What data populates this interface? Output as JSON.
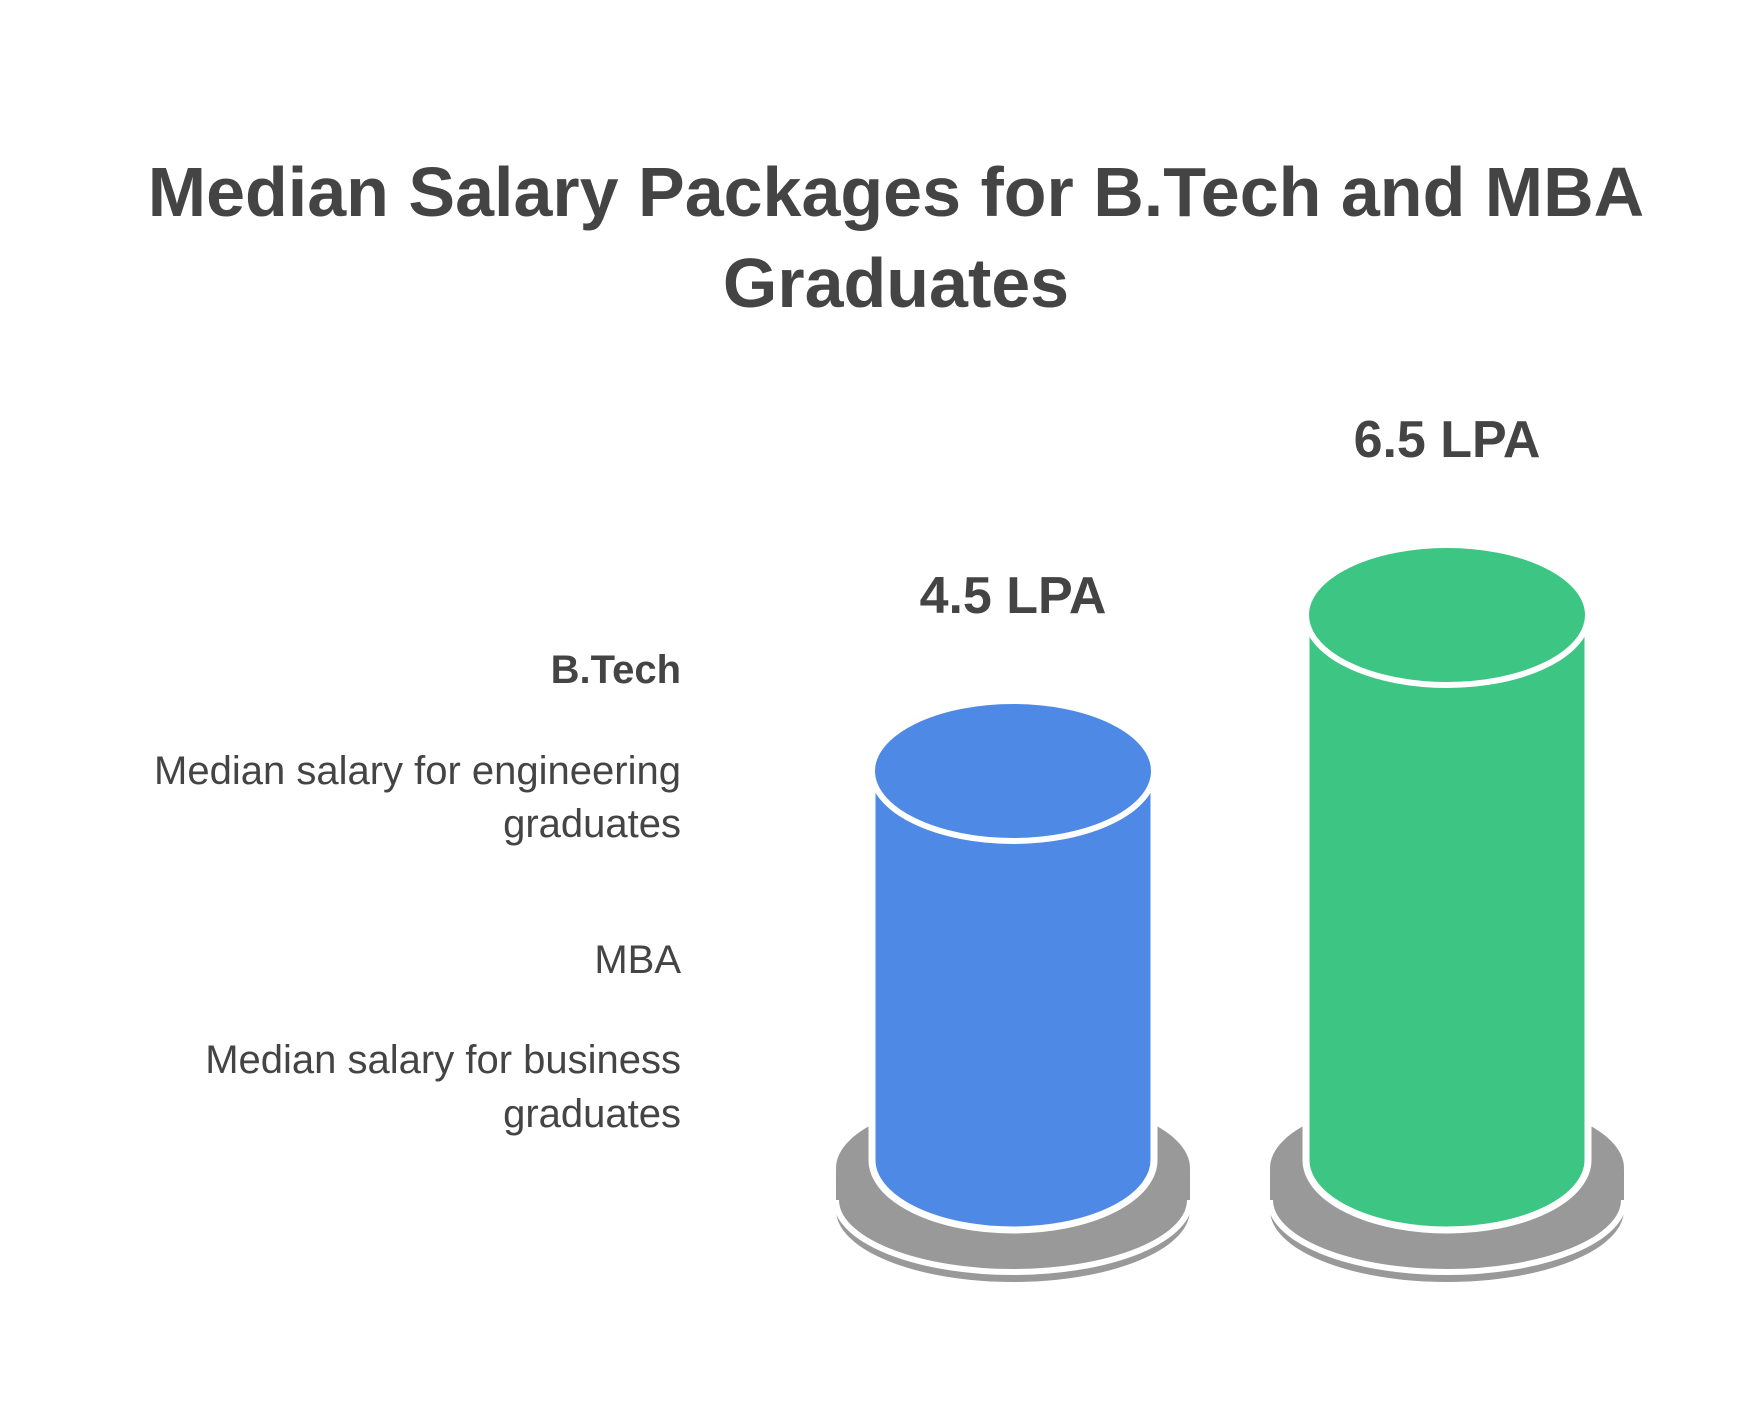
{
  "chart_data": {
    "type": "bar",
    "title_lines": [
      "Median Salary Packages for B.Tech and MBA",
      "Graduates"
    ],
    "categories": [
      "B.Tech",
      "MBA"
    ],
    "values": [
      4.5,
      6.5
    ],
    "unit": "LPA",
    "value_labels": [
      "4.5 LPA",
      "6.5 LPA"
    ],
    "legend": [
      {
        "name": "B.Tech",
        "description_lines": [
          "Median salary for engineering",
          "graduates"
        ]
      },
      {
        "name": "MBA",
        "description_lines": [
          "Median salary for business",
          "graduates"
        ]
      }
    ],
    "colors": [
      "#4F89E6",
      "#3DC583"
    ],
    "base_color": "#999999",
    "text_color": "#444444",
    "legend_placement": "left",
    "grid": false
  }
}
